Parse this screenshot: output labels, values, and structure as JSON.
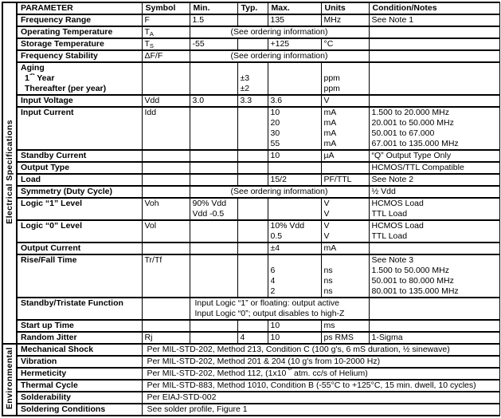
{
  "side_labels": {
    "electrical": "Electrical Specifications",
    "environmental": "Environmental"
  },
  "header": {
    "parameter": "PARAMETER",
    "symbol": "Symbol",
    "min": "Min.",
    "typ": "Typ.",
    "max": "Max.",
    "units": "Units",
    "condition": "Condition/Notes"
  },
  "rows": {
    "frequency_range": {
      "param": "Frequency Range",
      "symbol": "F",
      "min": "1.5",
      "typ": "",
      "max": "135",
      "units": "MHz",
      "cond": "See Note 1"
    },
    "operating_temperature": {
      "param": "Operating Temperature",
      "symbol": "T",
      "symbol_sub": "A",
      "span": "(See ordering information)",
      "cond": ""
    },
    "storage_temperature": {
      "param": "Storage Temperature",
      "symbol": "T",
      "symbol_sub": "S",
      "min": "-55",
      "typ": "",
      "max": "+125",
      "units": "°C",
      "cond": ""
    },
    "frequency_stability": {
      "param": "Frequency Stability",
      "symbol": "ΔF/F",
      "span": "(See ordering information)",
      "cond": ""
    },
    "aging": {
      "param_line1": "Aging",
      "year_num": "1",
      "year_sup": "st",
      "year_rest": " Year",
      "param_line3": "Thereafter (per year)",
      "typ_lines": [
        "",
        "±3",
        "±2"
      ],
      "units_lines": [
        "",
        "ppm",
        "ppm"
      ]
    },
    "input_voltage": {
      "param": "Input Voltage",
      "symbol": "Vdd",
      "min": "3.0",
      "typ": "3.3",
      "max": "3.6",
      "units": "V",
      "cond": ""
    },
    "input_current": {
      "param": "Input Current",
      "symbol": "Idd",
      "max_lines": [
        "10",
        "20",
        "30",
        "55"
      ],
      "units_lines": [
        "mA",
        "mA",
        "mA",
        "mA"
      ],
      "cond_lines": [
        "1.500 to 20.000 MHz",
        "20.001 to 50.000 MHz",
        "50.001 to 67.000",
        "67.001 to 135.000 MHz"
      ]
    },
    "standby_current": {
      "param": "Standby Current",
      "symbol": "",
      "min": "",
      "typ": "",
      "max": "10",
      "units": "µA",
      "cond": "“Q” Output Type Only"
    },
    "output_type": {
      "param": "Output Type",
      "symbol": "",
      "min": "",
      "typ": "",
      "max": "",
      "units": "",
      "cond": "HCMOS/TTL Compatible"
    },
    "load": {
      "param": "Load",
      "symbol": "",
      "min": "",
      "typ": "",
      "max": "15/2",
      "units": "PF/TTL",
      "cond": "See Note 2"
    },
    "symmetry": {
      "param": "Symmetry (Duty Cycle)",
      "symbol": "",
      "span": "(See ordering information)",
      "cond": "½ Vdd"
    },
    "logic_1": {
      "param": "Logic “1” Level",
      "symbol": "Voh",
      "min_lines": [
        "90% Vdd",
        "Vdd -0.5"
      ],
      "units_lines": [
        "V",
        "V"
      ],
      "cond_lines": [
        "HCMOS Load",
        "TTL Load"
      ]
    },
    "logic_0": {
      "param": "Logic “0” Level",
      "symbol": "Vol",
      "max_lines": [
        "10% Vdd",
        "0.5"
      ],
      "units_lines": [
        "V",
        "V"
      ],
      "cond_lines": [
        "HCMOS Load",
        "TTL Load"
      ]
    },
    "output_current": {
      "param": "Output Current",
      "symbol": "",
      "min": "",
      "typ": "",
      "max": "±4",
      "units": "mA",
      "cond": ""
    },
    "rise_fall": {
      "param": "Rise/Fall Time",
      "symbol": "Tr/Tf",
      "max_lines": [
        "",
        "6",
        "4",
        "2"
      ],
      "units_lines": [
        "",
        "ns",
        "ns",
        "ns"
      ],
      "cond_lines": [
        "See Note 3",
        "1.500 to 50.000 MHz",
        "50.001 to 80.000 MHz",
        "80.001 to 135.000 MHz"
      ]
    },
    "standby_tristate": {
      "param": "Standby/Tristate Function",
      "symbol": "",
      "span_lines": [
        "Input Logic “1” or floating: output active",
        "Input Logic “0”; output disables to high-Z"
      ],
      "cond": ""
    },
    "startup_time": {
      "param": "Start up Time",
      "symbol": "",
      "min": "",
      "typ": "",
      "max": "10",
      "units": "ms",
      "cond": ""
    },
    "random_jitter": {
      "param": "Random Jitter",
      "symbol": "Rj",
      "min": "",
      "typ": "4",
      "max": "10",
      "units": "ps RMS",
      "cond": "1-Sigma"
    },
    "mechanical_shock": {
      "param": "Mechanical Shock",
      "value": "Per MIL-STD-202, Method 213, Condition C (100 g's, 6 mS duration, ½ sinewave)"
    },
    "vibration": {
      "param": "Vibration",
      "value": "Per MIL-STD-202, Method 201 & 204 (10 g's from 10-2000 Hz)"
    },
    "hermeticity": {
      "param": "Hermeticity",
      "value_pre": "Per MIL-STD-202, Method 112, (1x10",
      "value_sup": "-8",
      "value_post": " atm. cc/s of Helium)"
    },
    "thermal_cycle": {
      "param": "Thermal Cycle",
      "value": "Per MIL-STD-883, Method 1010, Condition B (-55°C to +125°C, 15 min. dwell, 10 cycles)"
    },
    "solderability": {
      "param": "Solderability",
      "value": "Per EIAJ-STD-002"
    },
    "soldering_conditions": {
      "param": "Soldering Conditions",
      "value": "See solder profile, Figure 1"
    }
  },
  "colors": {
    "border": "#000000",
    "background": "#ffffff",
    "text": "#000000"
  }
}
